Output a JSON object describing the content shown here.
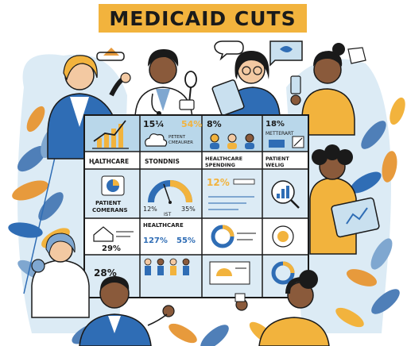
{
  "title": "MEDICAID CUTS",
  "colors": {
    "accent_orange": "#f2b33d",
    "accent_blue": "#2f6db5",
    "light_blue": "#c9e0ef",
    "panel_blue": "#b9d7ea",
    "ink": "#1a1a1a",
    "leaf_blue": "#4f7fb8",
    "leaf_orange": "#e79a3c"
  },
  "icons": [
    "chart-growth-icon",
    "cloud-icon",
    "people-icon",
    "percent-icon",
    "pie-chart-icon",
    "gauge-icon",
    "magnifier-icon",
    "house-icon",
    "donut-chart-icon",
    "coin-icon",
    "line-chart-icon",
    "document-icon"
  ],
  "board": {
    "row1": {
      "a": {
        "stat": ""
      },
      "b": {
        "stat": "15¼",
        "stat2": "54%",
        "label": "PETENT\nCMEAURER"
      },
      "c": {
        "stat": "8%"
      },
      "d": {
        "stat": "18%",
        "label": "METTERART"
      }
    },
    "row2_labels": [
      "ⱧALTHCARE",
      "STONDNIS",
      "HEALTHCARE SPENDING",
      "PATIENT WELIG"
    ],
    "row3": {
      "a": {
        "label1": "PATIENT",
        "label2": "COMERANS"
      },
      "b": {
        "left": "12%",
        "right": "35%",
        "bottom": "IST"
      },
      "c": {
        "stat": "12%"
      }
    },
    "row4": {
      "a": {
        "stat": "29%"
      },
      "b": {
        "label": "HEALTHCARE",
        "stat1": "127%",
        "stat2": "55%"
      }
    },
    "row5": {
      "a": {
        "stat": "28%"
      }
    }
  }
}
